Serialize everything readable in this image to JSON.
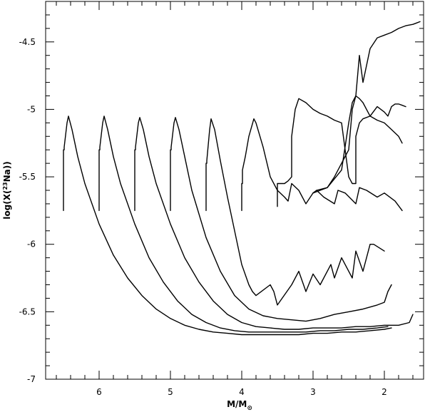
{
  "chart_data": {
    "type": "line",
    "title": "",
    "xlabel": "M/M",
    "xlabel_subscript": "⊙",
    "ylabel": "log(X(",
    "ylabel_superscript": "23",
    "ylabel_tail": "Na))",
    "xlim": [
      6.75,
      1.45
    ],
    "ylim": [
      -7,
      -4.2
    ],
    "x_reversed": true,
    "x_ticks": [
      6,
      5,
      4,
      3,
      2
    ],
    "x_tick_labels": [
      "6",
      "5",
      "4",
      "3",
      "2"
    ],
    "y_ticks": [
      -7,
      -6.5,
      -6,
      -5.5,
      -5,
      -4.5
    ],
    "y_tick_labels": [
      "-7",
      "-6.5",
      "-6",
      "-5.5",
      "-5",
      "-4.5"
    ],
    "grid": false,
    "legend": "none",
    "series": [
      {
        "x": [
          6.5,
          6.5,
          6.49,
          6.49,
          6.45,
          6.43,
          6.38,
          6.3,
          6.2,
          6.0,
          5.8,
          5.6,
          5.4,
          5.2,
          5.0,
          4.8,
          4.6,
          4.4,
          4.2,
          4.0,
          3.8,
          3.6,
          3.4,
          3.2,
          3.0,
          2.8,
          2.6,
          2.4,
          2.2,
          2.0,
          1.9
        ],
        "y": [
          -5.75,
          -5.3,
          -5.3,
          -5.28,
          -5.1,
          -5.05,
          -5.15,
          -5.35,
          -5.55,
          -5.85,
          -6.08,
          -6.25,
          -6.38,
          -6.48,
          -6.55,
          -6.6,
          -6.63,
          -6.65,
          -6.66,
          -6.67,
          -6.67,
          -6.67,
          -6.67,
          -6.67,
          -6.66,
          -6.66,
          -6.65,
          -6.65,
          -6.64,
          -6.63,
          -6.62
        ]
      },
      {
        "x": [
          6.0,
          6.0,
          5.99,
          5.99,
          5.95,
          5.93,
          5.88,
          5.8,
          5.7,
          5.5,
          5.3,
          5.1,
          4.9,
          4.7,
          4.5,
          4.3,
          4.1,
          3.9,
          3.7,
          3.5,
          3.3,
          3.1,
          2.9,
          2.7,
          2.5,
          2.3,
          2.1,
          1.95
        ],
        "y": [
          -5.75,
          -5.3,
          -5.3,
          -5.28,
          -5.1,
          -5.05,
          -5.15,
          -5.35,
          -5.55,
          -5.85,
          -6.1,
          -6.28,
          -6.42,
          -6.52,
          -6.58,
          -6.62,
          -6.64,
          -6.65,
          -6.65,
          -6.65,
          -6.65,
          -6.65,
          -6.64,
          -6.64,
          -6.63,
          -6.63,
          -6.62,
          -6.61
        ]
      },
      {
        "x": [
          5.5,
          5.5,
          5.49,
          5.49,
          5.45,
          5.43,
          5.38,
          5.3,
          5.2,
          5.0,
          4.8,
          4.6,
          4.4,
          4.2,
          4.0,
          3.8,
          3.6,
          3.4,
          3.2,
          3.0,
          2.8,
          2.6,
          2.4,
          2.2,
          2.0,
          1.8,
          1.65,
          1.6
        ],
        "y": [
          -5.75,
          -5.3,
          -5.3,
          -5.28,
          -5.1,
          -5.06,
          -5.15,
          -5.35,
          -5.55,
          -5.85,
          -6.1,
          -6.28,
          -6.42,
          -6.52,
          -6.58,
          -6.61,
          -6.62,
          -6.63,
          -6.63,
          -6.62,
          -6.62,
          -6.62,
          -6.61,
          -6.61,
          -6.6,
          -6.6,
          -6.58,
          -6.52
        ]
      },
      {
        "x": [
          5.0,
          5.0,
          4.99,
          4.99,
          4.95,
          4.93,
          4.88,
          4.8,
          4.7,
          4.5,
          4.3,
          4.1,
          3.9,
          3.7,
          3.5,
          3.3,
          3.1,
          2.9,
          2.7,
          2.5,
          2.3,
          2.1,
          2.0,
          1.95,
          1.9
        ],
        "y": [
          -5.75,
          -5.3,
          -5.3,
          -5.28,
          -5.1,
          -5.06,
          -5.15,
          -5.35,
          -5.6,
          -5.95,
          -6.2,
          -6.38,
          -6.48,
          -6.53,
          -6.55,
          -6.56,
          -6.57,
          -6.55,
          -6.52,
          -6.5,
          -6.48,
          -6.45,
          -6.43,
          -6.35,
          -6.3
        ]
      },
      {
        "x": [
          4.5,
          4.5,
          4.49,
          4.49,
          4.45,
          4.43,
          4.38,
          4.3,
          4.2,
          4.0,
          3.9,
          3.85,
          3.8,
          3.6,
          3.55,
          3.5,
          3.3,
          3.2,
          3.1,
          3.0,
          2.9,
          2.75,
          2.7,
          2.6,
          2.45,
          2.4,
          2.3,
          2.2,
          2.15,
          2.0
        ],
        "y": [
          -5.75,
          -5.4,
          -5.4,
          -5.38,
          -5.15,
          -5.07,
          -5.15,
          -5.38,
          -5.65,
          -6.15,
          -6.3,
          -6.35,
          -6.38,
          -6.3,
          -6.35,
          -6.45,
          -6.3,
          -6.2,
          -6.35,
          -6.22,
          -6.3,
          -6.15,
          -6.25,
          -6.1,
          -6.25,
          -6.05,
          -6.2,
          -6.0,
          -6.0,
          -6.05
        ]
      },
      {
        "x": [
          4.0,
          4.0,
          3.99,
          3.99,
          3.95,
          3.9,
          3.83,
          3.8,
          3.7,
          3.6,
          3.5,
          3.4,
          3.35,
          3.3,
          3.2,
          3.1,
          3.0,
          2.95,
          2.85,
          2.7,
          2.65,
          2.55,
          2.4,
          2.35,
          2.25,
          2.1,
          2.0,
          1.85,
          1.75
        ],
        "y": [
          -5.75,
          -5.55,
          -5.55,
          -5.45,
          -5.35,
          -5.2,
          -5.07,
          -5.1,
          -5.28,
          -5.5,
          -5.6,
          -5.65,
          -5.68,
          -5.55,
          -5.6,
          -5.7,
          -5.62,
          -5.6,
          -5.65,
          -5.7,
          -5.6,
          -5.62,
          -5.7,
          -5.58,
          -5.6,
          -5.65,
          -5.62,
          -5.68,
          -5.75
        ]
      },
      {
        "x": [
          3.5,
          3.5,
          3.4,
          3.35,
          3.3,
          3.3,
          3.25,
          3.2,
          3.1,
          3.0,
          2.9,
          2.8,
          2.7,
          2.6,
          2.5,
          2.45,
          2.4,
          2.4,
          2.35,
          2.3,
          2.2,
          2.1,
          2.0,
          1.9,
          1.8,
          1.75
        ],
        "y": [
          -5.72,
          -5.55,
          -5.55,
          -5.53,
          -5.5,
          -5.2,
          -5.0,
          -4.92,
          -4.95,
          -5.0,
          -5.03,
          -5.05,
          -5.08,
          -5.1,
          -5.5,
          -5.55,
          -5.55,
          -5.2,
          -5.1,
          -5.07,
          -5.05,
          -5.08,
          -5.1,
          -5.15,
          -5.2,
          -5.25
        ]
      },
      {
        "x": [
          3.0,
          2.95,
          2.8,
          2.6,
          2.5,
          2.45,
          2.4,
          2.35,
          2.3,
          2.2,
          2.1,
          2.0,
          1.95,
          1.9,
          1.85,
          1.8,
          1.75,
          1.7
        ],
        "y": [
          -5.62,
          -5.6,
          -5.58,
          -5.45,
          -5.1,
          -4.95,
          -4.9,
          -4.92,
          -4.95,
          -5.05,
          -4.98,
          -5.02,
          -5.05,
          -4.98,
          -4.96,
          -4.96,
          -4.97,
          -4.98
        ]
      },
      {
        "x": [
          3.0,
          2.9,
          2.8,
          2.7,
          2.6,
          2.5,
          2.45,
          2.4,
          2.35,
          2.3,
          2.2,
          2.1,
          2.0,
          1.9,
          1.8,
          1.7,
          1.6,
          1.55,
          1.5
        ],
        "y": [
          -5.62,
          -5.6,
          -5.58,
          -5.5,
          -5.4,
          -5.3,
          -5.0,
          -4.9,
          -4.6,
          -4.8,
          -4.55,
          -4.47,
          -4.45,
          -4.43,
          -4.4,
          -4.38,
          -4.37,
          -4.36,
          -4.35
        ]
      }
    ]
  }
}
